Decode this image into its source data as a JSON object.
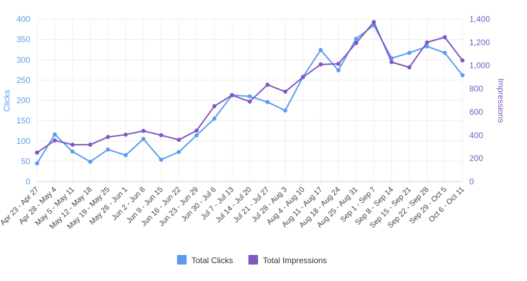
{
  "chart_data": {
    "type": "line",
    "categories": [
      "Apr 23 - Apr 27",
      "Apr 28 - May 4",
      "May 5 - May 11",
      "May 12 - May 18",
      "May 19 - May 25",
      "May 26 - Jun 1",
      "Jun 2 - Jun 8",
      "Jun 9 - Jun 15",
      "Jun 16 - Jun 22",
      "Jun 23 - Jun 29",
      "Jun 30 - Jul 6",
      "Jul 7 - Jul 13",
      "Jul 14 - Jul 20",
      "Jul 21 - Jul 27",
      "Jul 28 - Aug 3",
      "Aug 4 - Aug 10",
      "Aug 11 - Aug 17",
      "Aug 18 - Aug 24",
      "Aug 25 - Aug 31",
      "Sep 1 - Sep 7",
      "Sep 8 - Sep 14",
      "Sep 15 - Sep 21",
      "Sep 22 - Sep 28",
      "Sep 29 - Oct 5",
      "Oct 6 - Oct 11"
    ],
    "series": [
      {
        "name": "Total Clicks",
        "axis": "left",
        "color": "#5b9bf1",
        "values": [
          45,
          116,
          74,
          49,
          79,
          65,
          105,
          54,
          73,
          114,
          155,
          213,
          210,
          196,
          175,
          258,
          324,
          274,
          352,
          385,
          304,
          317,
          333,
          317,
          262
        ]
      },
      {
        "name": "Total Impressions",
        "axis": "right",
        "color": "#7e57c2",
        "values": [
          250,
          355,
          318,
          318,
          385,
          405,
          437,
          400,
          360,
          440,
          650,
          745,
          690,
          835,
          775,
          900,
          1010,
          1015,
          1195,
          1375,
          1030,
          985,
          1200,
          1245,
          1045
        ]
      }
    ],
    "yleft": {
      "label": "Clicks",
      "ticks": [
        "0",
        "50",
        "100",
        "150",
        "200",
        "250",
        "300",
        "350",
        "400"
      ],
      "lim": [
        0,
        400
      ],
      "color": "#5b9bf1"
    },
    "yright": {
      "label": "Impressions",
      "ticks": [
        "0",
        "200",
        "400",
        "600",
        "800",
        "1,000",
        "1,200",
        "1,400"
      ],
      "lim": [
        0,
        1400
      ],
      "color": "#7e57c2"
    },
    "grid": true,
    "legend_position": "bottom"
  }
}
